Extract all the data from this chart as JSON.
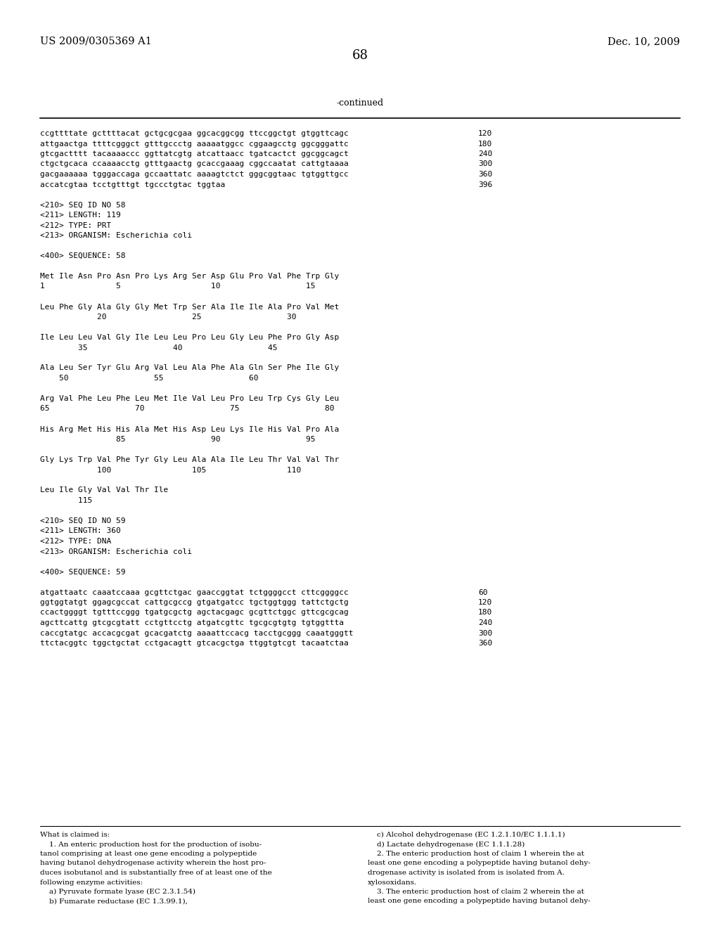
{
  "header_left": "US 2009/0305369 A1",
  "header_right": "Dec. 10, 2009",
  "page_number": "68",
  "continued_label": "-continued",
  "background_color": "#ffffff",
  "text_color": "#000000",
  "font_size_header": 10.5,
  "font_size_page_num": 13,
  "lines": [
    {
      "text": "ccgttttate gcttttacat gctgcgcgaa ggcacggcgg ttccggctgt gtggttcagc",
      "num": "120"
    },
    {
      "text": "attgaactga ttttcgggct gtttgccctg aaaaatggcc cggaagcctg ggcgggattc",
      "num": "180"
    },
    {
      "text": "gtcgactttt tacaaaaccc ggttatcgtg atcattaacc tgatcactct ggcggcagct",
      "num": "240"
    },
    {
      "text": "ctgctgcaca ccaaaacctg gtttgaactg gcaccgaaag cggccaatat cattgtaaaa",
      "num": "300"
    },
    {
      "text": "gacgaaaaaa tgggaccaga gccaattatc aaaagtctct gggcggtaac tgtggttgcc",
      "num": "360"
    },
    {
      "text": "accatcgtaa tcctgtttgt tgccctgtac tggtaa",
      "num": "396"
    },
    {
      "text": "",
      "num": ""
    },
    {
      "text": "<210> SEQ ID NO 58",
      "num": ""
    },
    {
      "text": "<211> LENGTH: 119",
      "num": ""
    },
    {
      "text": "<212> TYPE: PRT",
      "num": ""
    },
    {
      "text": "<213> ORGANISM: Escherichia coli",
      "num": ""
    },
    {
      "text": "",
      "num": ""
    },
    {
      "text": "<400> SEQUENCE: 58",
      "num": ""
    },
    {
      "text": "",
      "num": ""
    },
    {
      "text": "Met Ile Asn Pro Asn Pro Lys Arg Ser Asp Glu Pro Val Phe Trp Gly",
      "num": ""
    },
    {
      "text": "1               5                   10                  15",
      "num": ""
    },
    {
      "text": "",
      "num": ""
    },
    {
      "text": "Leu Phe Gly Ala Gly Gly Met Trp Ser Ala Ile Ile Ala Pro Val Met",
      "num": ""
    },
    {
      "text": "            20                  25                  30",
      "num": ""
    },
    {
      "text": "",
      "num": ""
    },
    {
      "text": "Ile Leu Leu Val Gly Ile Leu Leu Pro Leu Gly Leu Phe Pro Gly Asp",
      "num": ""
    },
    {
      "text": "        35                  40                  45",
      "num": ""
    },
    {
      "text": "",
      "num": ""
    },
    {
      "text": "Ala Leu Ser Tyr Glu Arg Val Leu Ala Phe Ala Gln Ser Phe Ile Gly",
      "num": ""
    },
    {
      "text": "    50                  55                  60",
      "num": ""
    },
    {
      "text": "",
      "num": ""
    },
    {
      "text": "Arg Val Phe Leu Phe Leu Met Ile Val Leu Pro Leu Trp Cys Gly Leu",
      "num": ""
    },
    {
      "text": "65                  70                  75                  80",
      "num": ""
    },
    {
      "text": "",
      "num": ""
    },
    {
      "text": "His Arg Met His His Ala Met His Asp Leu Lys Ile His Val Pro Ala",
      "num": ""
    },
    {
      "text": "                85                  90                  95",
      "num": ""
    },
    {
      "text": "",
      "num": ""
    },
    {
      "text": "Gly Lys Trp Val Phe Tyr Gly Leu Ala Ala Ile Leu Thr Val Val Thr",
      "num": ""
    },
    {
      "text": "            100                 105                 110",
      "num": ""
    },
    {
      "text": "",
      "num": ""
    },
    {
      "text": "Leu Ile Gly Val Val Thr Ile",
      "num": ""
    },
    {
      "text": "        115",
      "num": ""
    },
    {
      "text": "",
      "num": ""
    },
    {
      "text": "<210> SEQ ID NO 59",
      "num": ""
    },
    {
      "text": "<211> LENGTH: 360",
      "num": ""
    },
    {
      "text": "<212> TYPE: DNA",
      "num": ""
    },
    {
      "text": "<213> ORGANISM: Escherichia coli",
      "num": ""
    },
    {
      "text": "",
      "num": ""
    },
    {
      "text": "<400> SEQUENCE: 59",
      "num": ""
    },
    {
      "text": "",
      "num": ""
    },
    {
      "text": "atgattaatc caaatccaaa gcgttctgac gaaccggtat tctggggcct cttcggggcc",
      "num": "60"
    },
    {
      "text": "ggtggtatgt ggagcgccat cattgcgccg gtgatgatcc tgctggtggg tattctgctg",
      "num": "120"
    },
    {
      "text": "ccactggggt tgtttccggg tgatgcgctg agctacgagc gcgttctggc gttcgcgcag",
      "num": "180"
    },
    {
      "text": "agcttcattg gtcgcgtatt cctgttcctg atgatcgttc tgcgcgtgtg tgtggttta",
      "num": "240"
    },
    {
      "text": "caccgtatgc accacgcgat gcacgatctg aaaattccacg tacctgcggg caaatgggtt",
      "num": "300"
    },
    {
      "text": "ttctacggtc tggctgctat cctgacagtt gtcacgctga ttggtgtcgt tacaatctaa",
      "num": "360"
    }
  ],
  "footer_col1": [
    "What is claimed is:",
    "    1. An enteric production host for the production of isobu-",
    "tanol comprising at least one gene encoding a polypeptide",
    "having butanol dehydrogenase activity wherein the host pro-",
    "duces isobutanol and is substantially free of at least one of the",
    "following enzyme activities:",
    "    a) Pyruvate formate lyase (EC 2.3.1.54)",
    "    b) Fumarate reductase (EC 1.3.99.1),"
  ],
  "footer_col2": [
    "    c) Alcohol dehydrogenase (EC 1.2.1.10/EC 1.1.1.1)",
    "    d) Lactate dehydrogenase (EC 1.1.1.28)",
    "    2. The enteric production host of claim 1 wherein the at",
    "least one gene encoding a polypeptide having butanol dehy-",
    "drogenase activity is isolated from is isolated from A.",
    "xylosoxidans.",
    "    3. The enteric production host of claim 2 wherein the at",
    "least one gene encoding a polypeptide having butanol dehy-"
  ]
}
